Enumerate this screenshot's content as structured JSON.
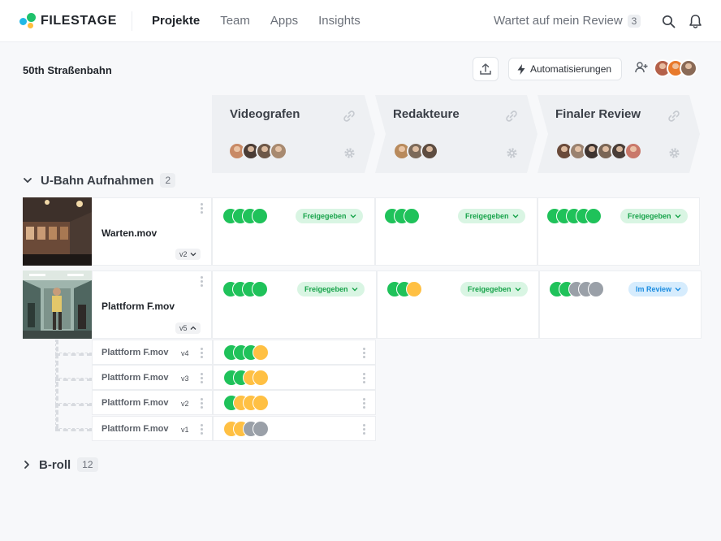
{
  "app": {
    "logo_text": "FILESTAGE"
  },
  "nav": {
    "items": [
      "Projekte",
      "Team",
      "Apps",
      "Insights"
    ],
    "active": 0
  },
  "review": {
    "label": "Wartet auf mein Review",
    "count": "3"
  },
  "project": {
    "title": "50th Straßenbahn",
    "automation_label": "Automatisierungen"
  },
  "stages": [
    {
      "name": "Videografen",
      "avatar_count": 4
    },
    {
      "name": "Redakteure",
      "avatar_count": 3
    },
    {
      "name": "Finaler Review",
      "avatar_count": 6
    }
  ],
  "groups": [
    {
      "name": "U-Bahn Aufnahmen",
      "count": "2",
      "expanded": true
    },
    {
      "name": "B-roll",
      "count": "12",
      "expanded": false
    }
  ],
  "files": [
    {
      "name": "Warten.mov",
      "version": "v2",
      "stages": [
        {
          "dots": [
            "g",
            "g",
            "g",
            "g"
          ],
          "status": "Freigegeben"
        },
        {
          "dots": [
            "g",
            "g",
            "g"
          ],
          "status": "Freigegeben"
        },
        {
          "dots": [
            "g",
            "g",
            "g",
            "g",
            "g"
          ],
          "status": "Freigegeben"
        }
      ]
    },
    {
      "name": "Plattform F.mov",
      "version": "v5",
      "stages": [
        {
          "dots": [
            "g",
            "g",
            "g",
            "g"
          ],
          "status": "Freigegeben"
        },
        {
          "dots": [
            "g",
            "g",
            "y"
          ],
          "status": "Freigegeben"
        },
        {
          "dots": [
            "g",
            "g",
            "gr",
            "gr",
            "gr"
          ],
          "status": "Im Review"
        }
      ]
    }
  ],
  "old_versions": [
    {
      "name": "Plattform F.mov",
      "version": "v4",
      "dots": [
        "g",
        "g",
        "g",
        "y"
      ]
    },
    {
      "name": "Plattform F.mov",
      "version": "v3",
      "dots": [
        "g",
        "g",
        "y",
        "y"
      ]
    },
    {
      "name": "Plattform F.mov",
      "version": "v2",
      "dots": [
        "g",
        "y",
        "y",
        "y"
      ]
    },
    {
      "name": "Plattform F.mov",
      "version": "v1",
      "dots": [
        "y",
        "y",
        "gr",
        "gr"
      ]
    }
  ],
  "colors": {
    "approved": "#1fc25a",
    "pending": "#ffc043",
    "not_started": "#9aa0a8",
    "review": "#1a8ce0"
  }
}
